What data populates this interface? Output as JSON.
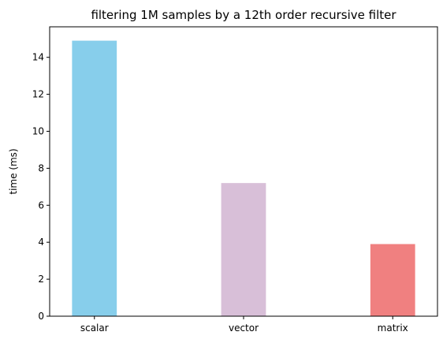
{
  "chart_data": {
    "type": "bar",
    "title": "filtering 1M samples by a 12th order recursive filter",
    "xlabel": "",
    "ylabel": "time (ms)",
    "categories": [
      "scalar",
      "vector",
      "matrix"
    ],
    "values": [
      14.9,
      7.2,
      3.9
    ],
    "colors": [
      "#87ceeb",
      "#d8bfd8",
      "#f08080"
    ],
    "ylim": [
      0,
      15.65
    ],
    "yticks": [
      0,
      2,
      4,
      6,
      8,
      10,
      12,
      14
    ],
    "grid": false,
    "legend": "none"
  }
}
